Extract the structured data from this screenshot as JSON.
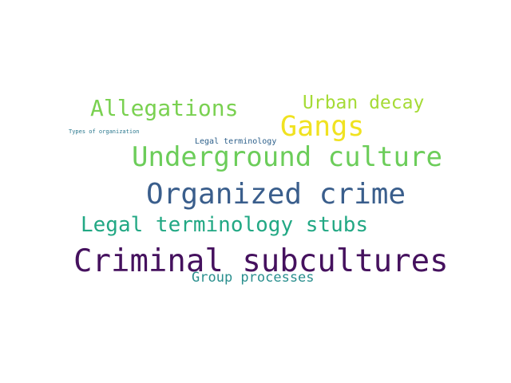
{
  "words": [
    {
      "text": "Criminal subcultures",
      "color": "#45115e"
    },
    {
      "text": "Organized crime",
      "color": "#3a5e8c"
    },
    {
      "text": "Underground culture",
      "color": "#6ccd5a"
    },
    {
      "text": "Gangs",
      "color": "#f0e220"
    },
    {
      "text": "Allegations",
      "color": "#7ad151"
    },
    {
      "text": "Legal terminology stubs",
      "color": "#22a884"
    },
    {
      "text": "Urban decay",
      "color": "#a5db36"
    },
    {
      "text": "Group processes",
      "color": "#2a8f8e"
    },
    {
      "text": "Legal terminology",
      "color": "#2c5f8a"
    },
    {
      "text": "Types of organization",
      "color": "#2a788e"
    }
  ]
}
